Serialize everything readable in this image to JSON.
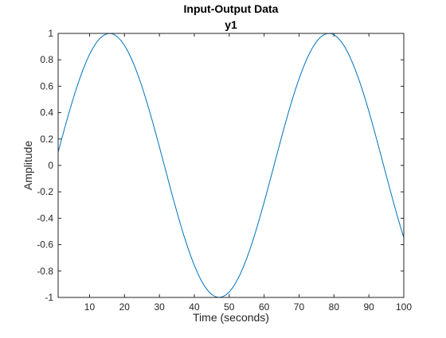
{
  "chart_data": {
    "type": "line",
    "title": "Input-Output Data",
    "subtitle": "y1",
    "xlabel": "Time (seconds)",
    "ylabel": "Amplitude",
    "xlim": [
      1,
      100
    ],
    "ylim": [
      -1,
      1
    ],
    "xticks": [
      10,
      20,
      30,
      40,
      50,
      60,
      70,
      80,
      90,
      100
    ],
    "xtick_labels": [
      "10",
      "20",
      "30",
      "40",
      "50",
      "60",
      "70",
      "80",
      "90",
      "100"
    ],
    "yticks": [
      -1,
      -0.8,
      -0.6,
      -0.4,
      -0.2,
      0,
      0.2,
      0.4,
      0.6,
      0.8,
      1
    ],
    "ytick_labels": [
      "-1",
      "-0.8",
      "-0.6",
      "-0.4",
      "-0.2",
      "0",
      "0.2",
      "0.4",
      "0.6",
      "0.8",
      "1"
    ],
    "grid": false,
    "box": true,
    "series": [
      {
        "color": "#0072bd",
        "x": [
          1,
          2,
          3,
          4,
          5,
          6,
          7,
          8,
          9,
          10,
          11,
          12,
          13,
          14,
          15,
          16,
          17,
          18,
          19,
          20,
          21,
          22,
          23,
          24,
          25,
          26,
          27,
          28,
          29,
          30,
          31,
          32,
          33,
          34,
          35,
          36,
          37,
          38,
          39,
          40,
          41,
          42,
          43,
          44,
          45,
          46,
          47,
          48,
          49,
          50,
          51,
          52,
          53,
          54,
          55,
          56,
          57,
          58,
          59,
          60,
          61,
          62,
          63,
          64,
          65,
          66,
          67,
          68,
          69,
          70,
          71,
          72,
          73,
          74,
          75,
          76,
          77,
          78,
          79,
          80,
          81,
          82,
          83,
          84,
          85,
          86,
          87,
          88,
          89,
          90,
          91,
          92,
          93,
          94,
          95,
          96,
          97,
          98,
          99,
          100
        ],
        "y": [
          0.1,
          0.199,
          0.296,
          0.39,
          0.479,
          0.565,
          0.644,
          0.717,
          0.783,
          0.842,
          0.891,
          0.932,
          0.964,
          0.985,
          0.997,
          1.0,
          0.992,
          0.974,
          0.946,
          0.909,
          0.863,
          0.808,
          0.745,
          0.675,
          0.598,
          0.515,
          0.427,
          0.335,
          0.239,
          0.141,
          0.042,
          -0.058,
          -0.158,
          -0.256,
          -0.351,
          -0.443,
          -0.53,
          -0.612,
          -0.688,
          -0.757,
          -0.818,
          -0.872,
          -0.917,
          -0.952,
          -0.978,
          -0.994,
          -1.0,
          -0.996,
          -0.982,
          -0.959,
          -0.926,
          -0.883,
          -0.832,
          -0.772,
          -0.705,
          -0.631,
          -0.55,
          -0.464,
          -0.373,
          -0.279,
          -0.182,
          -0.083,
          0.017,
          0.117,
          0.215,
          0.312,
          0.405,
          0.494,
          0.578,
          0.656,
          0.728,
          0.793,
          0.85,
          0.898,
          0.938,
          0.968,
          0.988,
          0.999,
          1.0,
          0.99,
          0.97,
          0.941,
          0.902,
          0.854,
          0.797,
          0.733,
          0.661,
          0.583,
          0.499,
          0.41,
          0.317,
          0.22,
          0.122,
          0.022,
          -0.078,
          -0.177,
          -0.275,
          -0.37,
          -0.46,
          -0.547
        ]
      }
    ]
  }
}
